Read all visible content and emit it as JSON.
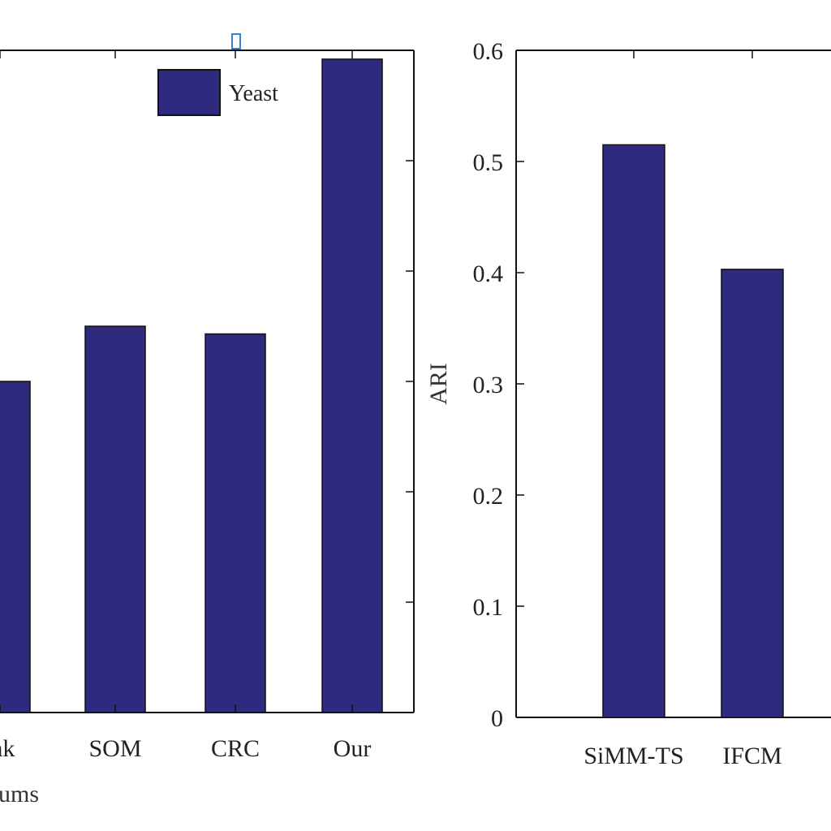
{
  "chart_data": [
    {
      "type": "bar",
      "title": "",
      "xlabel_fragment": "ums",
      "ylabel": "",
      "ylim": [
        0,
        0.6
      ],
      "categories": [
        "Link",
        "SOM",
        "CRC",
        "Our"
      ],
      "series": [
        {
          "name": "Yeast",
          "color": "#2e2a80",
          "values": [
            0.3,
            0.35,
            0.343,
            0.592
          ]
        }
      ],
      "legend": {
        "position": "top-right",
        "entries": [
          "Yeast"
        ]
      },
      "grid": false
    },
    {
      "type": "bar",
      "title": "",
      "xlabel": "",
      "ylabel": "ARI",
      "ylim": [
        0,
        0.6
      ],
      "yticks": [
        "0",
        "0.1",
        "0.2",
        "0.3",
        "0.4",
        "0.5",
        "0.6"
      ],
      "categories": [
        "SiMM-TS",
        "IFCM"
      ],
      "series": [
        {
          "color": "#2e2a80",
          "values": [
            0.515,
            0.403
          ]
        }
      ],
      "grid": false
    }
  ]
}
